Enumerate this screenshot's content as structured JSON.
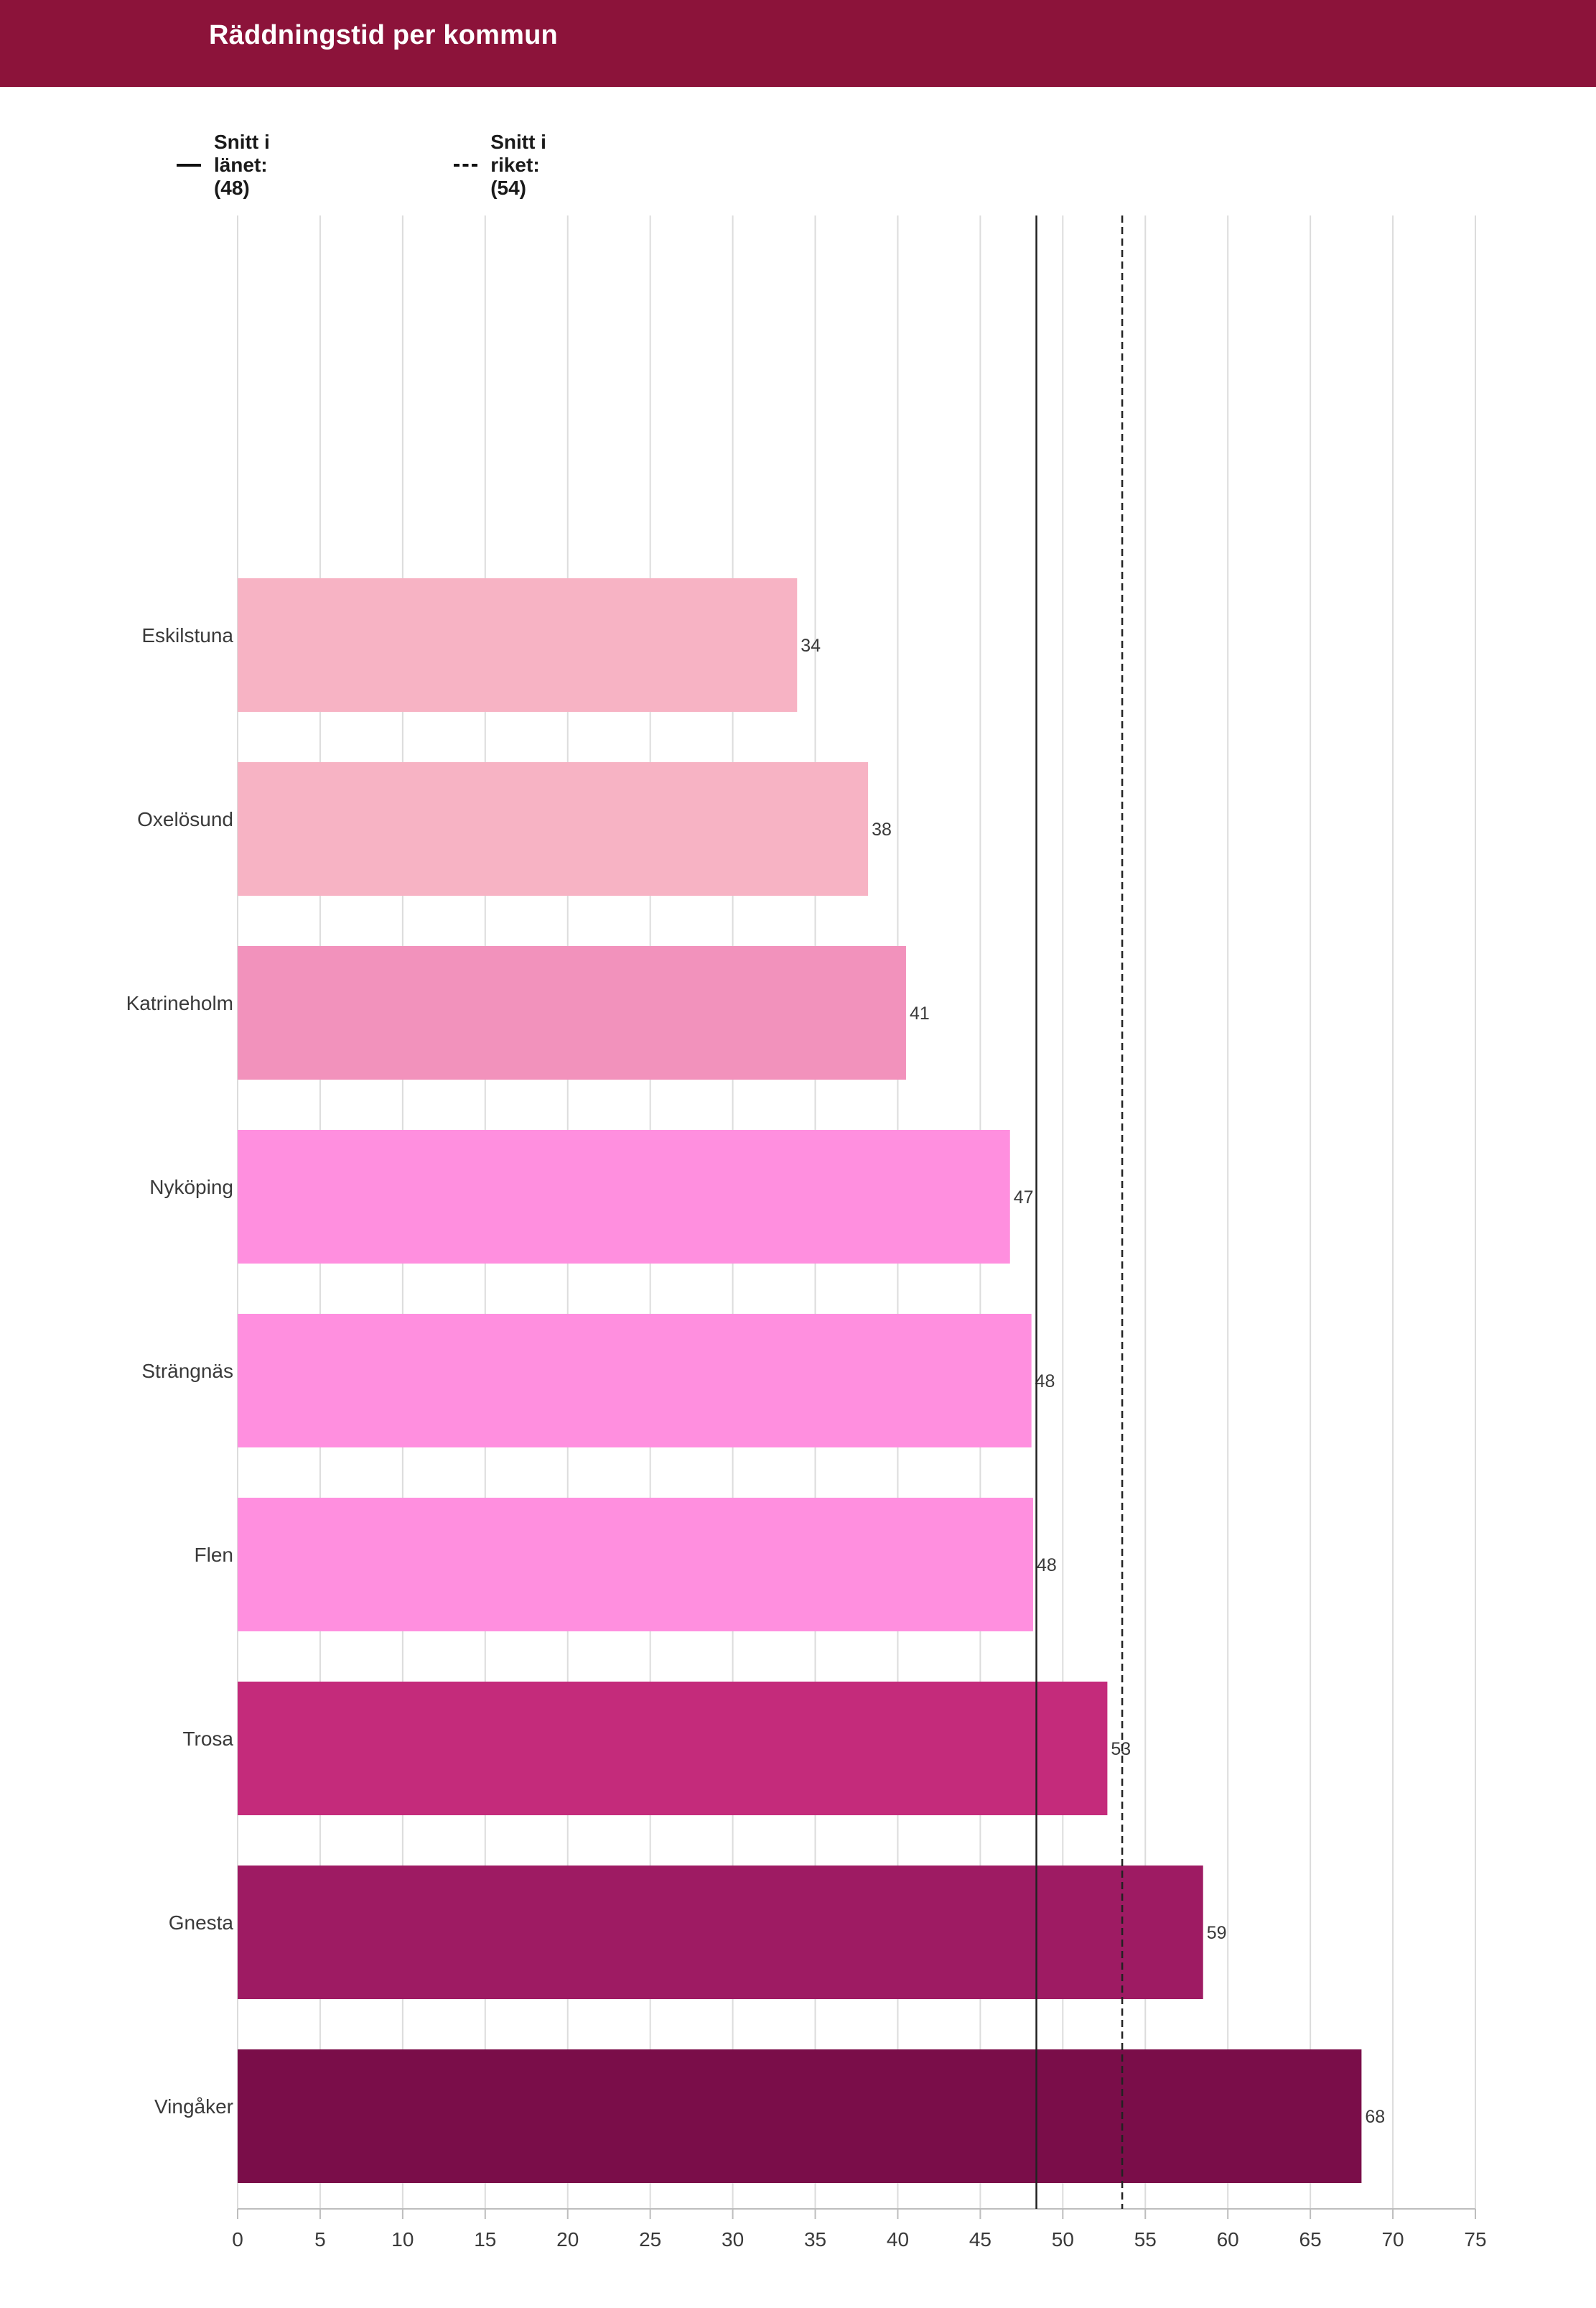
{
  "header": {
    "title": "Räddningstid per kommun",
    "background": "#8c133a"
  },
  "legend": {
    "items": [
      {
        "label": "Snitt i länet: (48)",
        "style": "solid"
      },
      {
        "label": "Snitt i riket: (54)",
        "style": "dashed"
      }
    ]
  },
  "chart_data": {
    "type": "bar",
    "orientation": "horizontal",
    "title": "Räddningstid per kommun",
    "xlabel": "",
    "ylabel": "",
    "xlim": [
      0,
      75
    ],
    "x_ticks": [
      0,
      5,
      10,
      15,
      20,
      25,
      30,
      35,
      40,
      45,
      50,
      55,
      60,
      65,
      70,
      75
    ],
    "grid": "vertical",
    "legend_position": "top-left",
    "categories": [
      "Eskilstuna",
      "Oxelösund",
      "Katrineholm",
      "Nyköping",
      "Strängnäs",
      "Flen",
      "Trosa",
      "Gnesta",
      "Vingåker"
    ],
    "values": [
      33.9,
      38.2,
      40.5,
      46.8,
      48.1,
      48.2,
      52.7,
      58.5,
      68.1
    ],
    "data_labels": [
      "34",
      "38",
      "41",
      "47",
      "48",
      "48",
      "53",
      "59",
      "68"
    ],
    "colors": [
      "#f7b3c4",
      "#f7b3c4",
      "#f292bc",
      "#ff8fdf",
      "#ff8fdf",
      "#ff8fdf",
      "#c42b7b",
      "#9e1b63",
      "#7a0d49"
    ],
    "reference_lines": [
      {
        "name": "Snitt i länet",
        "value": 48.4,
        "style": "solid",
        "color": "#222222"
      },
      {
        "name": "Snitt i riket",
        "value": 53.6,
        "style": "dashed",
        "color": "#222222"
      }
    ]
  }
}
